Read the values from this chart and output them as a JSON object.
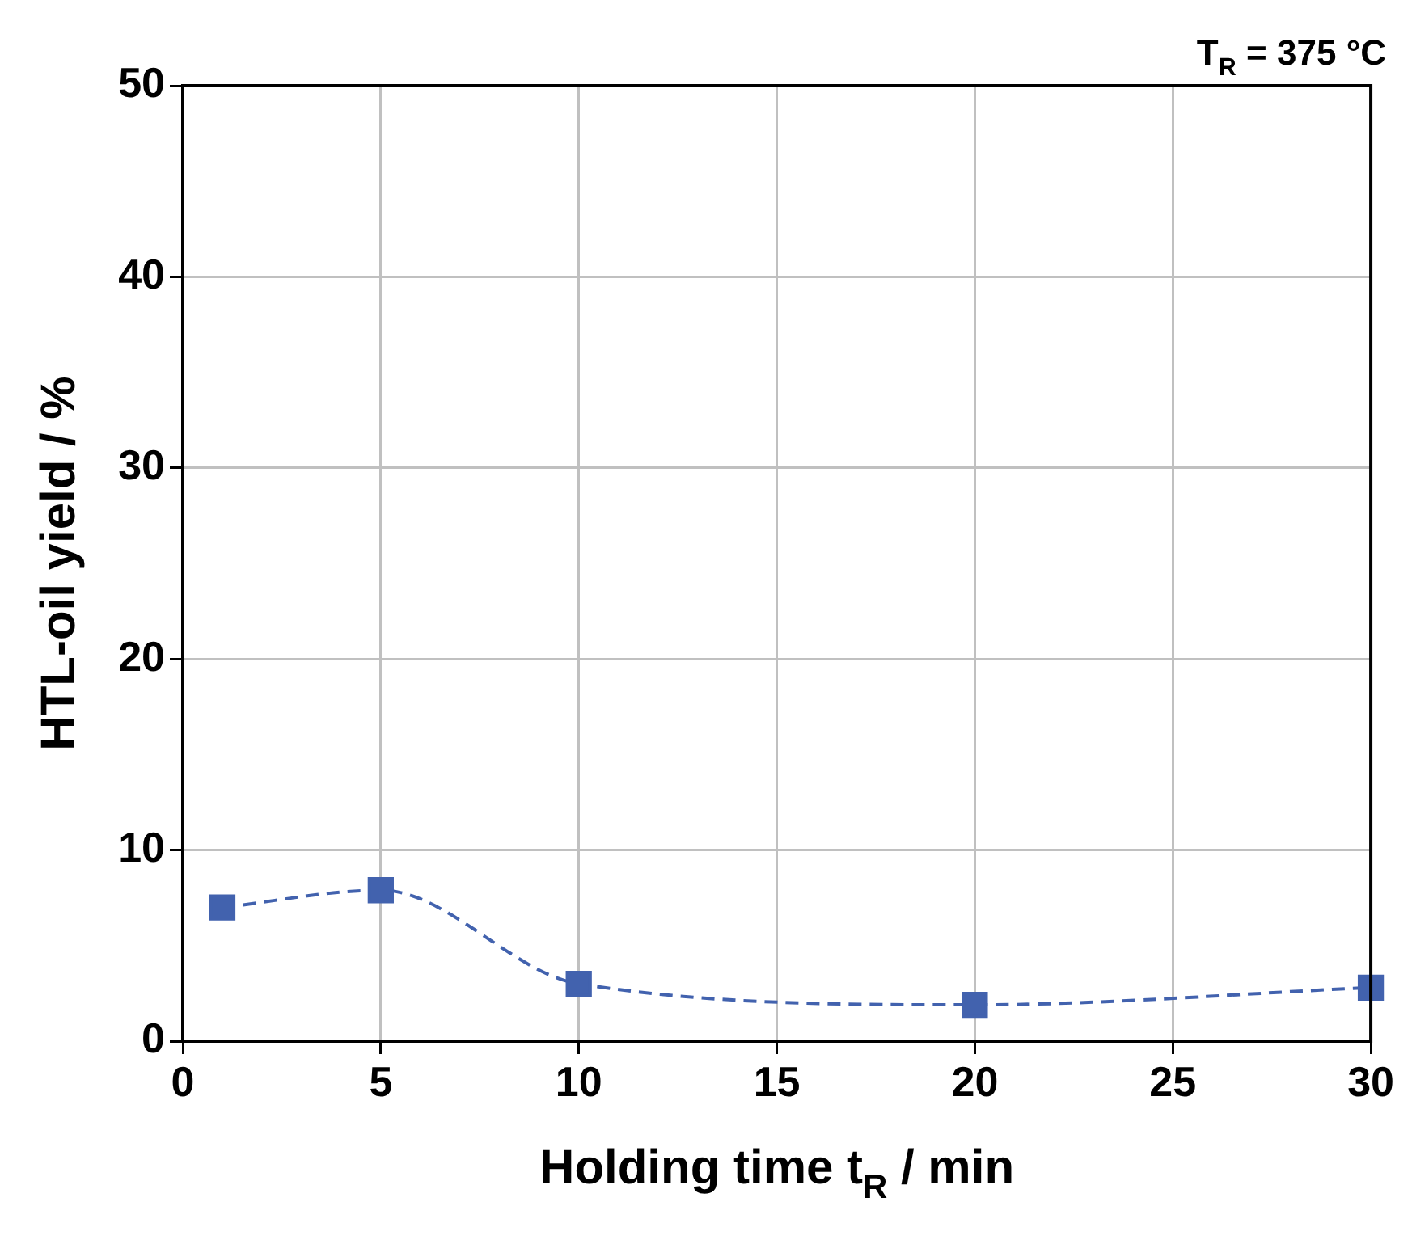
{
  "chart_data": {
    "type": "line",
    "xlabel": "Holding time t$_{R}$ / min",
    "ylabel": "HTL-oil yield / %",
    "annotations": [
      "T$_{R}$ = 375 °C"
    ],
    "x": [
      1,
      5,
      10,
      20,
      30
    ],
    "series": [
      {
        "color": "#4262ae",
        "values": [
          7,
          7.9,
          3,
          1.9,
          2.8
        ]
      }
    ],
    "xlim": [
      0,
      30
    ],
    "xticks": [
      0,
      5,
      10,
      15,
      20,
      25,
      30
    ],
    "ylim": [
      0,
      50
    ],
    "yticks": [
      0,
      10,
      20,
      30,
      40,
      50
    ],
    "grid": true,
    "legend": false,
    "marker": "square",
    "line_style": "dashed"
  }
}
